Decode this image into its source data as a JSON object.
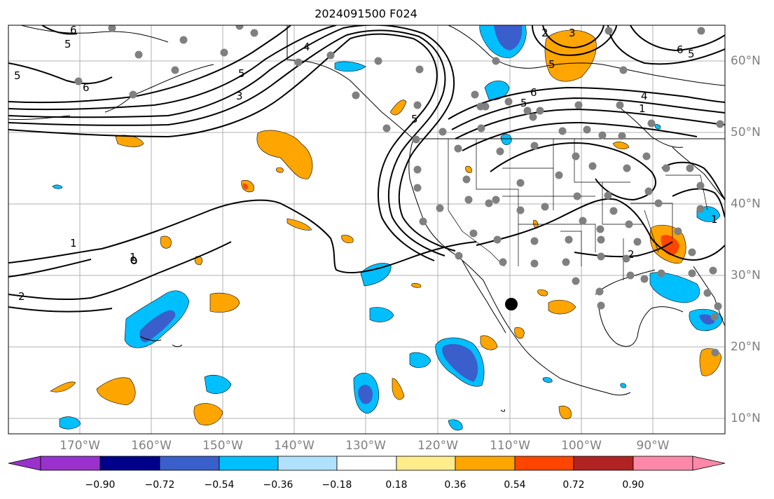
{
  "title": "2024091500 F024",
  "lon_labels": [
    "170°W",
    "160°W",
    "150°W",
    "140°W",
    "130°W",
    "120°W",
    "110°W",
    "100°W",
    "90°W"
  ],
  "lat_labels": [
    "60°N",
    "50°N",
    "40°N",
    "30°N",
    "20°N",
    "10°N"
  ],
  "contour_labels": [
    "5",
    "6",
    "4",
    "5",
    "3",
    "6",
    "5",
    "1",
    "1",
    "2",
    "6",
    "5",
    "4",
    "1",
    "5",
    "5",
    "6",
    "5",
    "3",
    "2",
    "2",
    "1"
  ],
  "colorbar": {
    "tick_labels": [
      "−0.90",
      "−0.72",
      "−0.54",
      "−0.36",
      "−0.18",
      "0.18",
      "0.36",
      "0.54",
      "0.72",
      "0.90"
    ],
    "colors": [
      "#9932CC",
      "#00008B",
      "#3A5FCD",
      "#00BFFF",
      "#B0E2FF",
      "#FFFFFF",
      "#FFEC8B",
      "#FFA500",
      "#FF4500",
      "#B22222",
      "#FF88AA"
    ]
  },
  "station_marker_count": 95
}
